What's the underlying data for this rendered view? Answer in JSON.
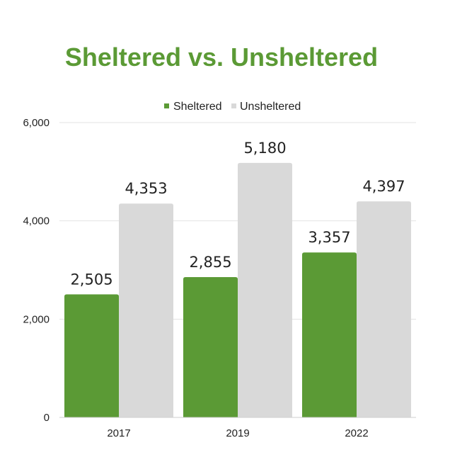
{
  "chart_data": {
    "type": "bar",
    "title": "Sheltered vs. Unsheltered",
    "categories": [
      "2017",
      "2019",
      "2022"
    ],
    "series": [
      {
        "name": "Sheltered",
        "color": "#5b9a35",
        "values": [
          2505,
          2855,
          3357
        ],
        "labels": [
          "2,505",
          "2,855",
          "3,357"
        ]
      },
      {
        "name": "Unsheltered",
        "color": "#d9d9d9",
        "values": [
          4353,
          5180,
          4397
        ],
        "labels": [
          "4,353",
          "5,180",
          "4,397"
        ]
      }
    ],
    "ylim": [
      0,
      6000
    ],
    "yticks": [
      0,
      2000,
      4000,
      6000
    ],
    "ytick_labels": [
      "0",
      "2,000",
      "4,000",
      "6,000"
    ],
    "grid": true,
    "legend": "top-center",
    "title_color": "#5b9a35",
    "xlabel": "",
    "ylabel": ""
  }
}
